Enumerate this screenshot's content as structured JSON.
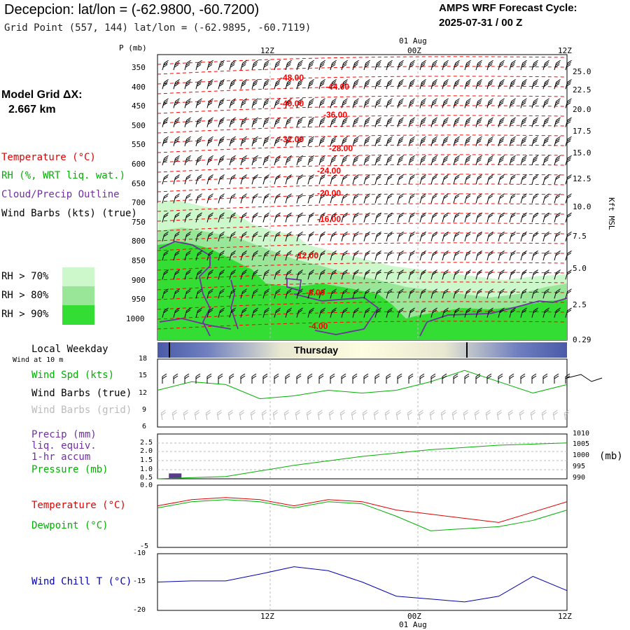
{
  "header": {
    "title": "Decepcion:  lat/lon = (-62.9800, -60.7200)",
    "subtitle": "Grid Point (557, 144) lat/lon = (-62.9895, -60.7119)",
    "forecast_label": "AMPS WRF Forecast Cycle:",
    "cycle": "2025-07-31 / 00  Z"
  },
  "left_panel": {
    "grid_label": "Model Grid ΔX:",
    "grid_value": "2.667 km",
    "legend": {
      "temperature": "Temperature (°C)",
      "rh": "RH (%, WRT liq. wat.)",
      "cloud": "Cloud/Precip Outline",
      "wind": "Wind Barbs (kts) (true)"
    },
    "rh_levels": [
      "RH > 70%",
      "RH > 80%",
      "RH > 90%"
    ],
    "colors": {
      "temperature": "#ff0000",
      "rh": "#00b000",
      "cloud": "#7030a0",
      "rh70": "#ccf8cc",
      "rh80": "#99e699",
      "rh90": "#33dd33"
    }
  },
  "top_axis": {
    "date_label": "01 Aug",
    "ticks": [
      "12Z",
      "00Z",
      "12Z"
    ]
  },
  "bottom_axis": {
    "date_label": "01 Aug",
    "ticks": [
      "12Z",
      "00Z",
      "12Z"
    ]
  },
  "day_bar": {
    "label": "Local Weekday",
    "day": "Thursday"
  },
  "panels": {
    "wind": {
      "note": "Wind at 10 m",
      "speed": "Wind Spd (kts)",
      "barbs_true": "Wind Barbs (true)",
      "barbs_grid": "Wind Barbs (grid)",
      "yticks": [
        "18",
        "15",
        "12",
        "9",
        "6"
      ]
    },
    "precip": {
      "l1": "Precip (mm)",
      "l2": "liq. equiv.",
      "l3": "1-hr accum",
      "l4": "Pressure (mb)",
      "unit": "(mb)",
      "yticks_left": [
        "2.5",
        "2.0",
        "1.5",
        "1.0",
        "0.5",
        "0.0"
      ],
      "yticks_right": [
        "1010",
        "1005",
        "1000",
        "995",
        "990"
      ]
    },
    "temp": {
      "temp_label": "Temperature (°C)",
      "dew_label": "Dewpoint (°C)",
      "ytick_bottom": "-5"
    },
    "chill": {
      "label": "Wind Chill T (°C)",
      "yticks": [
        "-10",
        "-15",
        "-20"
      ]
    }
  },
  "chart_data": [
    {
      "type": "area",
      "name": "cross-section",
      "y_axis_left": {
        "label": "P (mb)",
        "ticks": [
          "350",
          "400",
          "450",
          "500",
          "550",
          "600",
          "650",
          "700",
          "750",
          "800",
          "850",
          "900",
          "950",
          "1000"
        ]
      },
      "y_axis_right": {
        "label": "Kft MSL",
        "ticks": [
          "25.0",
          "22.5",
          "20.0",
          "17.5",
          "15.0",
          "12.5",
          "10.0",
          "7.5",
          "5.0",
          "2.5",
          "0.29"
        ]
      },
      "temperature_contour_labels": [
        "-48.00",
        "-44.00",
        "-40.00",
        "-36.00",
        "-32.00",
        "-28.00",
        "-24.00",
        "-20.00",
        "-16.00",
        "-12.00",
        "-8.00",
        "-4.00"
      ]
    },
    {
      "type": "line",
      "name": "10 m wind speed",
      "x_hours": [
        0,
        3,
        6,
        9,
        12,
        15,
        18,
        21,
        24,
        27,
        30,
        33,
        36
      ],
      "values": [
        12.5,
        14,
        13.5,
        11,
        11.5,
        12.5,
        12,
        12.5,
        14,
        16,
        14,
        12,
        13.5
      ],
      "ylim": [
        6,
        18
      ]
    },
    {
      "type": "line",
      "name": "pressure",
      "x_hours": [
        0,
        6,
        12,
        18,
        24,
        30,
        36
      ],
      "values": [
        990,
        991,
        996,
        1000,
        1003,
        1005,
        1006
      ],
      "ylim": [
        990,
        1010
      ]
    },
    {
      "type": "bar",
      "name": "precip",
      "x_hours": [
        1
      ],
      "values": [
        0.3
      ],
      "ylim": [
        0,
        2.5
      ]
    },
    {
      "type": "line",
      "name": "temperature/dewpoint",
      "x_hours": [
        0,
        3,
        6,
        9,
        12,
        15,
        18,
        21,
        24,
        27,
        30,
        33,
        36
      ],
      "series": [
        {
          "name": "Temperature",
          "values": [
            -3.0,
            -2.7,
            -2.6,
            -2.7,
            -3.0,
            -2.7,
            -2.8,
            -3.2,
            -3.4,
            -3.6,
            -3.8,
            -3.3,
            -2.8
          ]
        },
        {
          "name": "Dewpoint",
          "values": [
            -3.1,
            -2.8,
            -2.7,
            -2.8,
            -3.1,
            -2.8,
            -2.9,
            -3.5,
            -4.2,
            -4.1,
            -4.0,
            -3.7,
            -3.2
          ]
        }
      ]
    },
    {
      "type": "line",
      "name": "wind chill",
      "x_hours": [
        0,
        3,
        6,
        9,
        12,
        15,
        18,
        21,
        24,
        27,
        30,
        33,
        36
      ],
      "values": [
        -15,
        -14.8,
        -14.8,
        -13.6,
        -12.3,
        -13.0,
        -15.0,
        -17.5,
        -18.0,
        -18.5,
        -17.5,
        -14.0,
        -16.5
      ],
      "ylim": [
        -20,
        -10
      ]
    }
  ]
}
